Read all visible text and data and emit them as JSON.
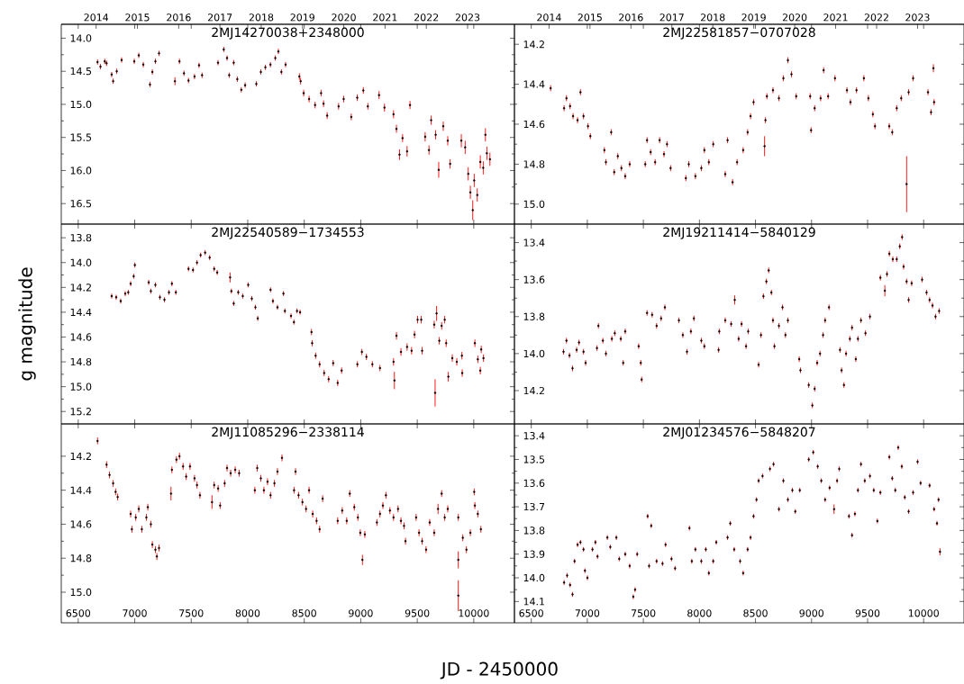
{
  "chart_data": [
    {
      "type": "scatter",
      "title": "2MJ14270038+2348000",
      "color": "#000000",
      "marker": "circle",
      "tick_labels": "y",
      "x": [
        6671,
        6697,
        6735,
        6751,
        6796,
        6809,
        6841,
        6884,
        6996,
        7036,
        7076,
        7135,
        7156,
        7183,
        7215,
        7356,
        7396,
        7436,
        7476,
        7529,
        7569,
        7596,
        7737,
        7788,
        7817,
        7836,
        7876,
        7908,
        7943,
        7977,
        8076,
        8116,
        8156,
        8201,
        8244,
        8271,
        8298,
        8335,
        8457,
        8468,
        8495,
        8543,
        8596,
        8649,
        8671,
        8703,
        8804,
        8849,
        8916,
        8969,
        9023,
        9063,
        9162,
        9210,
        9290,
        9316,
        9343,
        9370,
        9410,
        9436,
        9570,
        9604,
        9623,
        9663,
        9690,
        9730,
        9770,
        9791,
        9890,
        9924,
        9951,
        9970,
        9991,
        10004,
        10031,
        10058,
        10084,
        10103,
        10116,
        10143
      ],
      "values": [
        14.36,
        14.43,
        14.35,
        14.38,
        14.55,
        14.65,
        14.5,
        14.33,
        14.35,
        14.26,
        14.4,
        14.7,
        14.51,
        14.35,
        14.23,
        14.65,
        14.35,
        14.53,
        14.64,
        14.58,
        14.41,
        14.56,
        14.37,
        14.17,
        14.3,
        14.56,
        14.37,
        14.62,
        14.78,
        14.71,
        14.69,
        14.51,
        14.44,
        14.4,
        14.3,
        14.2,
        14.51,
        14.4,
        14.58,
        14.65,
        14.83,
        14.92,
        15.01,
        14.83,
        14.99,
        15.17,
        15.03,
        14.92,
        15.19,
        14.9,
        14.79,
        15.03,
        14.86,
        15.05,
        15.15,
        15.37,
        15.76,
        15.51,
        15.71,
        15.01,
        15.49,
        15.69,
        15.24,
        15.46,
        15.99,
        15.33,
        15.55,
        15.9,
        15.55,
        15.65,
        16.05,
        16.33,
        16.6,
        16.15,
        16.37,
        15.87,
        15.96,
        15.46,
        15.74,
        15.83
      ],
      "errors": [
        0.04,
        0.04,
        0.04,
        0.04,
        0.04,
        0.04,
        0.04,
        0.04,
        0.04,
        0.04,
        0.04,
        0.04,
        0.04,
        0.04,
        0.04,
        0.06,
        0.04,
        0.04,
        0.04,
        0.04,
        0.04,
        0.04,
        0.04,
        0.04,
        0.04,
        0.04,
        0.04,
        0.04,
        0.04,
        0.04,
        0.04,
        0.04,
        0.04,
        0.04,
        0.04,
        0.04,
        0.04,
        0.04,
        0.05,
        0.05,
        0.05,
        0.05,
        0.05,
        0.05,
        0.05,
        0.05,
        0.05,
        0.05,
        0.05,
        0.05,
        0.05,
        0.05,
        0.06,
        0.06,
        0.06,
        0.06,
        0.08,
        0.06,
        0.08,
        0.06,
        0.07,
        0.07,
        0.07,
        0.07,
        0.12,
        0.07,
        0.07,
        0.07,
        0.1,
        0.1,
        0.1,
        0.1,
        0.15,
        0.1,
        0.1,
        0.1,
        0.1,
        0.1,
        0.1,
        0.1
      ],
      "xlim": [
        6350,
        10360
      ],
      "xticks": [
        6500,
        7000,
        7500,
        8000,
        8500,
        9000,
        9500,
        10000
      ],
      "x2lim": [
        2013.155,
        2024.135
      ],
      "x2ticks": [
        2014,
        2015,
        2016,
        2017,
        2018,
        2019,
        2020,
        2021,
        2022,
        2023
      ],
      "ylim": [
        16.81,
        13.79
      ],
      "yticks": [
        {
          "value": 14,
          "label": "14.0"
        },
        14.5,
        {
          "value": 15,
          "label": "15.0"
        },
        15.5,
        {
          "value": 16,
          "label": "16.0"
        },
        16.5
      ]
    },
    {
      "type": "scatter",
      "title": "2MJ22581857−0707028",
      "color": "#000000",
      "marker": "circle",
      "tick_labels": "y",
      "x": [
        6673,
        6793,
        6814,
        6846,
        6873,
        6913,
        6939,
        6966,
        7006,
        7027,
        7152,
        7166,
        7213,
        7240,
        7272,
        7304,
        7338,
        7378,
        7517,
        7533,
        7565,
        7605,
        7645,
        7684,
        7711,
        7743,
        7879,
        7905,
        7964,
        8017,
        8044,
        8084,
        8123,
        8230,
        8251,
        8296,
        8336,
        8390,
        8430,
        8456,
        8483,
        8581,
        8589,
        8602,
        8656,
        8709,
        8749,
        8789,
        8821,
        8863,
        8988,
        8996,
        9028,
        9081,
        9108,
        9148,
        9209,
        9316,
        9347,
        9401,
        9467,
        9507,
        9547,
        9566,
        9693,
        9720,
        9760,
        9800,
        9848,
        9866,
        9906,
        10039,
        10066,
        10087,
        10093
      ],
      "values": [
        14.42,
        14.52,
        14.47,
        14.51,
        14.56,
        14.58,
        14.44,
        14.56,
        14.61,
        14.66,
        14.73,
        14.79,
        14.64,
        14.84,
        14.76,
        14.82,
        14.86,
        14.8,
        14.8,
        14.68,
        14.74,
        14.79,
        14.68,
        14.75,
        14.7,
        14.82,
        14.87,
        14.8,
        14.86,
        14.82,
        14.73,
        14.79,
        14.7,
        14.85,
        14.68,
        14.89,
        14.79,
        14.73,
        14.64,
        14.56,
        14.49,
        14.71,
        14.58,
        14.46,
        14.43,
        14.47,
        14.37,
        14.28,
        14.35,
        14.46,
        14.46,
        14.63,
        14.52,
        14.47,
        14.33,
        14.46,
        14.37,
        14.43,
        14.49,
        14.43,
        14.37,
        14.47,
        14.55,
        14.61,
        14.61,
        14.64,
        14.52,
        14.47,
        14.9,
        14.44,
        14.37,
        14.44,
        14.54,
        14.32,
        14.49
      ],
      "errors": [
        0.015,
        0.015,
        0.015,
        0.015,
        0.015,
        0.015,
        0.015,
        0.015,
        0.015,
        0.015,
        0.015,
        0.015,
        0.015,
        0.015,
        0.015,
        0.015,
        0.015,
        0.015,
        0.015,
        0.015,
        0.015,
        0.015,
        0.015,
        0.015,
        0.015,
        0.015,
        0.015,
        0.015,
        0.015,
        0.015,
        0.015,
        0.015,
        0.015,
        0.015,
        0.015,
        0.015,
        0.015,
        0.015,
        0.015,
        0.015,
        0.015,
        0.05,
        0.015,
        0.015,
        0.015,
        0.015,
        0.015,
        0.015,
        0.015,
        0.015,
        0.015,
        0.015,
        0.015,
        0.015,
        0.015,
        0.015,
        0.015,
        0.015,
        0.015,
        0.015,
        0.015,
        0.015,
        0.015,
        0.015,
        0.015,
        0.015,
        0.015,
        0.015,
        0.14,
        0.015,
        0.015,
        0.015,
        0.015,
        0.02,
        0.015
      ],
      "xlim": [
        6350,
        10360
      ],
      "xticks": [
        6500,
        7000,
        7500,
        8000,
        8500,
        9000,
        9500,
        10000
      ],
      "x2lim": [
        2013.155,
        2024.135
      ],
      "x2ticks": [
        2014,
        2015,
        2016,
        2017,
        2018,
        2019,
        2020,
        2021,
        2022,
        2023
      ],
      "ylim": [
        15.1,
        14.1
      ],
      "yticks": [
        14.2,
        14.4,
        14.6,
        14.8,
        {
          "value": 15,
          "label": "15.0"
        }
      ]
    },
    {
      "type": "scatter",
      "title": "2MJ22540589−1734553",
      "ylabel": "g magnitude",
      "color": "#000000",
      "marker": "circle",
      "tick_labels": "y",
      "x": [
        6796,
        6836,
        6876,
        6916,
        6943,
        6964,
        6991,
        7001,
        7124,
        7143,
        7183,
        7223,
        7263,
        7303,
        7329,
        7364,
        7476,
        7516,
        7551,
        7583,
        7623,
        7663,
        7703,
        7730,
        7844,
        7855,
        7876,
        7916,
        7956,
        8004,
        8036,
        8068,
        8089,
        8202,
        8223,
        8263,
        8316,
        8329,
        8383,
        8409,
        8436,
        8463,
        8564,
        8570,
        8601,
        8636,
        8676,
        8716,
        8756,
        8796,
        8831,
        8970,
        9010,
        9050,
        9103,
        9170,
        9290,
        9298,
        9316,
        9356,
        9410,
        9450,
        9476,
        9503,
        9535,
        9543,
        9650,
        9658,
        9671,
        9695,
        9716,
        9743,
        9756,
        9775,
        9810,
        9850,
        9895,
        9898,
        10010,
        10036,
        10058,
        10066,
        10086
      ],
      "values": [
        14.27,
        14.28,
        14.31,
        14.25,
        14.24,
        14.17,
        14.11,
        14.02,
        14.16,
        14.23,
        14.18,
        14.28,
        14.3,
        14.24,
        14.17,
        14.24,
        14.05,
        14.06,
        14.0,
        13.94,
        13.92,
        13.96,
        14.05,
        14.08,
        14.12,
        14.23,
        14.33,
        14.24,
        14.27,
        14.18,
        14.29,
        14.36,
        14.45,
        14.22,
        14.31,
        14.36,
        14.25,
        14.39,
        14.43,
        14.48,
        14.39,
        14.4,
        14.56,
        14.65,
        14.75,
        14.82,
        14.89,
        14.94,
        14.81,
        14.97,
        14.87,
        14.82,
        14.72,
        14.76,
        14.82,
        14.85,
        14.8,
        14.95,
        14.59,
        14.72,
        14.68,
        14.71,
        14.58,
        14.46,
        14.46,
        14.71,
        14.5,
        15.05,
        14.41,
        14.63,
        14.51,
        14.46,
        14.65,
        14.92,
        14.77,
        14.8,
        14.75,
        14.89,
        14.65,
        14.78,
        14.87,
        14.7,
        14.77
      ],
      "errors": [
        0.02,
        0.02,
        0.02,
        0.02,
        0.02,
        0.02,
        0.02,
        0.02,
        0.02,
        0.02,
        0.02,
        0.02,
        0.02,
        0.02,
        0.02,
        0.02,
        0.02,
        0.02,
        0.02,
        0.02,
        0.02,
        0.02,
        0.02,
        0.02,
        0.04,
        0.02,
        0.02,
        0.02,
        0.02,
        0.02,
        0.02,
        0.02,
        0.02,
        0.02,
        0.02,
        0.02,
        0.02,
        0.02,
        0.02,
        0.02,
        0.02,
        0.02,
        0.025,
        0.025,
        0.025,
        0.025,
        0.025,
        0.025,
        0.025,
        0.025,
        0.025,
        0.025,
        0.025,
        0.025,
        0.025,
        0.025,
        0.03,
        0.07,
        0.03,
        0.03,
        0.03,
        0.03,
        0.03,
        0.03,
        0.03,
        0.03,
        0.03,
        0.11,
        0.06,
        0.03,
        0.03,
        0.03,
        0.03,
        0.04,
        0.03,
        0.03,
        0.03,
        0.03,
        0.03,
        0.03,
        0.03,
        0.03,
        0.03
      ],
      "xlim": [
        6350,
        10360
      ],
      "xticks": [
        6500,
        7000,
        7500,
        8000,
        8500,
        9000,
        9500,
        10000
      ],
      "ylim": [
        15.3,
        13.69
      ],
      "yticks": [
        13.8,
        {
          "value": 14,
          "label": "14.0"
        },
        14.2,
        14.4,
        14.6,
        14.8,
        {
          "value": 15,
          "label": "15.0"
        },
        15.2
      ]
    },
    {
      "type": "scatter",
      "title": "2MJ19211414−5840129",
      "color": "#000000",
      "marker": "circle",
      "tick_labels": "y",
      "x": [
        6788,
        6814,
        6841,
        6868,
        6905,
        6926,
        6966,
        6985,
        7086,
        7099,
        7139,
        7166,
        7219,
        7245,
        7299,
        7320,
        7338,
        7458,
        7477,
        7485,
        7533,
        7578,
        7618,
        7658,
        7692,
        7817,
        7852,
        7889,
        7924,
        7951,
        8017,
        8044,
        8171,
        8177,
        8230,
        8283,
        8315,
        8350,
        8376,
        8416,
        8435,
        8528,
        8549,
        8571,
        8597,
        8618,
        8642,
        8656,
        8669,
        8709,
        8741,
        8767,
        8789,
        8890,
        8901,
        8975,
        9007,
        9028,
        9050,
        9076,
        9103,
        9121,
        9156,
        9254,
        9268,
        9289,
        9308,
        9342,
        9361,
        9395,
        9414,
        9441,
        9481,
        9521,
        9614,
        9654,
        9673,
        9694,
        9725,
        9760,
        9787,
        9808,
        9821,
        9848,
        9866,
        9893,
        9986,
        10026,
        10053,
        10079,
        10106,
        10138
      ],
      "values": [
        13.99,
        13.93,
        14.01,
        14.08,
        13.98,
        13.94,
        13.99,
        14.05,
        13.97,
        13.85,
        13.93,
        14.0,
        13.92,
        13.89,
        13.92,
        14.05,
        13.88,
        13.96,
        14.05,
        14.14,
        13.78,
        13.79,
        13.85,
        13.81,
        13.75,
        13.82,
        13.9,
        13.99,
        13.88,
        13.81,
        13.93,
        13.96,
        13.98,
        13.88,
        13.82,
        13.84,
        13.71,
        13.92,
        13.84,
        13.96,
        13.88,
        14.06,
        13.9,
        13.69,
        13.61,
        13.55,
        13.67,
        13.82,
        13.96,
        13.85,
        13.75,
        13.9,
        13.82,
        14.03,
        14.09,
        14.17,
        14.28,
        14.19,
        14.05,
        14.0,
        13.9,
        13.82,
        13.75,
        13.98,
        14.09,
        14.17,
        14.0,
        13.92,
        13.86,
        14.03,
        13.92,
        13.82,
        13.89,
        13.8,
        13.59,
        13.66,
        13.57,
        13.46,
        13.49,
        13.49,
        13.42,
        13.37,
        13.53,
        13.61,
        13.71,
        13.62,
        13.6,
        13.67,
        13.71,
        13.74,
        13.8,
        13.77
      ],
      "errors": [
        0.015,
        0.015,
        0.015,
        0.015,
        0.015,
        0.015,
        0.015,
        0.015,
        0.015,
        0.015,
        0.015,
        0.015,
        0.015,
        0.015,
        0.015,
        0.015,
        0.015,
        0.015,
        0.015,
        0.015,
        0.015,
        0.015,
        0.015,
        0.015,
        0.015,
        0.015,
        0.015,
        0.015,
        0.015,
        0.015,
        0.015,
        0.015,
        0.015,
        0.015,
        0.015,
        0.015,
        0.025,
        0.015,
        0.015,
        0.015,
        0.015,
        0.015,
        0.015,
        0.015,
        0.015,
        0.015,
        0.015,
        0.015,
        0.015,
        0.015,
        0.015,
        0.015,
        0.015,
        0.015,
        0.015,
        0.015,
        0.015,
        0.015,
        0.015,
        0.015,
        0.015,
        0.015,
        0.015,
        0.015,
        0.015,
        0.015,
        0.015,
        0.015,
        0.015,
        0.015,
        0.015,
        0.015,
        0.015,
        0.015,
        0.015,
        0.03,
        0.015,
        0.015,
        0.015,
        0.015,
        0.015,
        0.015,
        0.015,
        0.015,
        0.015,
        0.015,
        0.015,
        0.015,
        0.015,
        0.015,
        0.015,
        0.015
      ],
      "xlim": [
        6350,
        10360
      ],
      "xticks": [
        6500,
        7000,
        7500,
        8000,
        8500,
        9000,
        9500,
        10000
      ],
      "ylim": [
        14.38,
        13.3
      ],
      "yticks": [
        13.4,
        13.6,
        13.8,
        {
          "value": 14,
          "label": "14.0"
        },
        14.2
      ]
    },
    {
      "type": "scatter",
      "title": "2MJ11085296−2338114",
      "xlabel": "JD - 2450000",
      "color": "#000000",
      "marker": "circle",
      "x": [
        6671,
        6751,
        6777,
        6809,
        6831,
        6849,
        6964,
        6975,
        7009,
        7036,
        7063,
        7103,
        7116,
        7143,
        7156,
        7183,
        7196,
        7215,
        7321,
        7329,
        7369,
        7396,
        7428,
        7455,
        7489,
        7529,
        7551,
        7577,
        7684,
        7703,
        7738,
        7756,
        7796,
        7817,
        7849,
        7889,
        7924,
        8063,
        8084,
        8116,
        8143,
        8175,
        8202,
        8236,
        8263,
        8303,
        8410,
        8423,
        8450,
        8484,
        8516,
        8543,
        8575,
        8609,
        8636,
        8663,
        8796,
        8836,
        8876,
        8903,
        8943,
        8975,
        8996,
        9015,
        9036,
        9143,
        9170,
        9196,
        9223,
        9258,
        9290,
        9330,
        9356,
        9383,
        9396,
        9490,
        9516,
        9543,
        9578,
        9610,
        9650,
        9684,
        9716,
        9743,
        9770,
        9863,
        9863,
        9863,
        9903,
        9935,
        9970,
        10004,
        10010,
        10036,
        10063
      ],
      "values": [
        14.11,
        14.25,
        14.31,
        14.36,
        14.41,
        14.44,
        14.54,
        14.63,
        14.56,
        14.51,
        14.63,
        14.56,
        14.5,
        14.6,
        14.72,
        14.75,
        14.79,
        14.74,
        14.42,
        14.28,
        14.22,
        14.2,
        14.26,
        14.32,
        14.26,
        14.33,
        14.37,
        14.43,
        14.47,
        14.37,
        14.39,
        14.49,
        14.36,
        14.27,
        14.3,
        14.28,
        14.3,
        14.4,
        14.27,
        14.33,
        14.4,
        14.35,
        14.43,
        14.36,
        14.29,
        14.21,
        14.4,
        14.29,
        14.43,
        14.47,
        14.51,
        14.4,
        14.54,
        14.58,
        14.63,
        14.45,
        14.58,
        14.52,
        14.58,
        14.42,
        14.5,
        14.56,
        14.65,
        14.81,
        14.66,
        14.59,
        14.54,
        14.49,
        14.43,
        14.52,
        14.56,
        14.51,
        14.58,
        14.61,
        14.7,
        14.56,
        14.65,
        14.7,
        14.75,
        14.59,
        14.65,
        14.51,
        14.42,
        14.56,
        14.51,
        14.56,
        14.81,
        15.02,
        14.68,
        14.75,
        14.65,
        14.41,
        14.49,
        14.54,
        14.63
      ],
      "errors": [
        0.02,
        0.02,
        0.02,
        0.02,
        0.02,
        0.02,
        0.02,
        0.02,
        0.02,
        0.02,
        0.02,
        0.02,
        0.02,
        0.02,
        0.02,
        0.02,
        0.02,
        0.02,
        0.04,
        0.02,
        0.02,
        0.02,
        0.02,
        0.02,
        0.02,
        0.02,
        0.02,
        0.02,
        0.04,
        0.02,
        0.02,
        0.02,
        0.02,
        0.02,
        0.02,
        0.02,
        0.02,
        0.02,
        0.02,
        0.02,
        0.02,
        0.02,
        0.02,
        0.02,
        0.02,
        0.02,
        0.02,
        0.02,
        0.02,
        0.02,
        0.02,
        0.02,
        0.02,
        0.02,
        0.02,
        0.02,
        0.02,
        0.02,
        0.02,
        0.02,
        0.02,
        0.02,
        0.02,
        0.03,
        0.02,
        0.02,
        0.02,
        0.02,
        0.02,
        0.02,
        0.02,
        0.02,
        0.02,
        0.02,
        0.02,
        0.02,
        0.02,
        0.02,
        0.02,
        0.02,
        0.02,
        0.03,
        0.02,
        0.02,
        0.02,
        0.02,
        0.05,
        0.09,
        0.02,
        0.02,
        0.02,
        0.02,
        0.02,
        0.02,
        0.02
      ],
      "xlim": [
        6350,
        10360
      ],
      "xticks": [
        6500,
        7000,
        7500,
        8000,
        8500,
        9000,
        9500,
        10000
      ],
      "ylim": [
        15.18,
        14.01
      ],
      "yticks": [
        14.2,
        14.4,
        14.6,
        14.8,
        {
          "value": 15,
          "label": "15.0"
        }
      ]
    },
    {
      "type": "scatter",
      "title": "2MJ01234576−5848207",
      "color": "#000000",
      "marker": "circle",
      "x": [
        6793,
        6820,
        6846,
        6868,
        6886,
        6913,
        6939,
        6966,
        6979,
        7001,
        7046,
        7072,
        7091,
        7179,
        7205,
        7259,
        7285,
        7338,
        7378,
        7410,
        7426,
        7445,
        7538,
        7551,
        7570,
        7618,
        7671,
        7698,
        7751,
        7783,
        7911,
        7932,
        7964,
        8017,
        8057,
        8084,
        8123,
        8150,
        8251,
        8275,
        8310,
        8363,
        8390,
        8430,
        8456,
        8483,
        8509,
        8528,
        8563,
        8629,
        8661,
        8709,
        8749,
        8789,
        8829,
        8855,
        8895,
        8975,
        9015,
        9055,
        9087,
        9121,
        9161,
        9201,
        9228,
        9247,
        9334,
        9361,
        9387,
        9414,
        9441,
        9475,
        9521,
        9555,
        9587,
        9614,
        9694,
        9720,
        9747,
        9773,
        9805,
        9832,
        9866,
        9906,
        9946,
        9973,
        10053,
        10093,
        10119,
        10133,
        10146
      ],
      "values": [
        14.02,
        13.99,
        14.03,
        14.07,
        13.93,
        13.86,
        13.85,
        13.88,
        13.97,
        14.0,
        13.88,
        13.85,
        13.91,
        13.83,
        13.87,
        13.83,
        13.92,
        13.9,
        13.95,
        14.08,
        14.05,
        13.9,
        13.74,
        13.95,
        13.78,
        13.93,
        13.94,
        13.86,
        13.92,
        13.96,
        13.79,
        13.93,
        13.88,
        13.93,
        13.88,
        13.98,
        13.93,
        13.85,
        13.83,
        13.77,
        13.88,
        13.93,
        13.98,
        13.88,
        13.83,
        13.74,
        13.67,
        13.59,
        13.57,
        13.54,
        13.52,
        13.71,
        13.59,
        13.67,
        13.63,
        13.72,
        13.63,
        13.5,
        13.47,
        13.53,
        13.59,
        13.67,
        13.62,
        13.71,
        13.59,
        13.54,
        13.74,
        13.82,
        13.73,
        13.63,
        13.52,
        13.59,
        13.57,
        13.63,
        13.76,
        13.64,
        13.49,
        13.58,
        13.63,
        13.45,
        13.53,
        13.66,
        13.72,
        13.64,
        13.51,
        13.6,
        13.61,
        13.71,
        13.77,
        13.67,
        13.89
      ],
      "errors": [
        0.01,
        0.01,
        0.01,
        0.01,
        0.01,
        0.01,
        0.01,
        0.01,
        0.01,
        0.01,
        0.01,
        0.01,
        0.01,
        0.01,
        0.01,
        0.01,
        0.01,
        0.01,
        0.01,
        0.01,
        0.01,
        0.01,
        0.01,
        0.01,
        0.01,
        0.01,
        0.01,
        0.01,
        0.01,
        0.01,
        0.01,
        0.01,
        0.01,
        0.01,
        0.01,
        0.01,
        0.01,
        0.01,
        0.01,
        0.01,
        0.01,
        0.01,
        0.01,
        0.01,
        0.01,
        0.01,
        0.01,
        0.01,
        0.01,
        0.01,
        0.01,
        0.01,
        0.01,
        0.01,
        0.01,
        0.01,
        0.01,
        0.01,
        0.01,
        0.01,
        0.01,
        0.01,
        0.01,
        0.02,
        0.01,
        0.01,
        0.01,
        0.01,
        0.01,
        0.01,
        0.01,
        0.01,
        0.01,
        0.01,
        0.01,
        0.01,
        0.01,
        0.01,
        0.01,
        0.01,
        0.01,
        0.01,
        0.01,
        0.01,
        0.01,
        0.01,
        0.01,
        0.01,
        0.01,
        0.01,
        0.015
      ],
      "xlim": [
        6350,
        10360
      ],
      "xticks": [
        6500,
        7000,
        7500,
        8000,
        8500,
        9000,
        9500,
        10000
      ],
      "ylim": [
        14.19,
        13.35
      ],
      "yticks": [
        13.4,
        13.5,
        13.6,
        13.7,
        13.8,
        13.9,
        {
          "value": 14,
          "label": "14.0"
        },
        14.1
      ]
    }
  ]
}
